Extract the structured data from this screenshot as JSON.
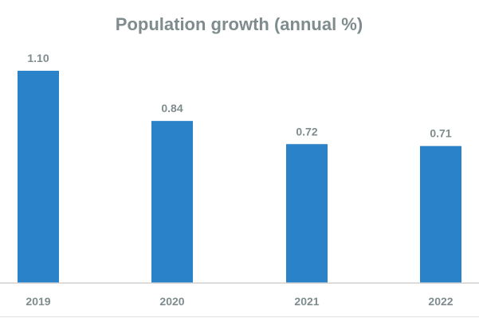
{
  "chart_data": {
    "type": "bar",
    "title": "Population growth (annual %)",
    "categories": [
      "2019",
      "2020",
      "2021",
      "2022"
    ],
    "values": [
      1.1,
      0.84,
      0.72,
      0.71
    ],
    "value_labels": [
      "1.10",
      "0.84",
      "0.72",
      "0.71"
    ],
    "xlabel": "",
    "ylabel": "",
    "ylim": [
      0,
      1.2
    ],
    "grid": false,
    "legend": "none",
    "colors": {
      "bar": "#2a82c9",
      "text": "#7f8c8d",
      "axis": "#d0d0d0"
    }
  }
}
